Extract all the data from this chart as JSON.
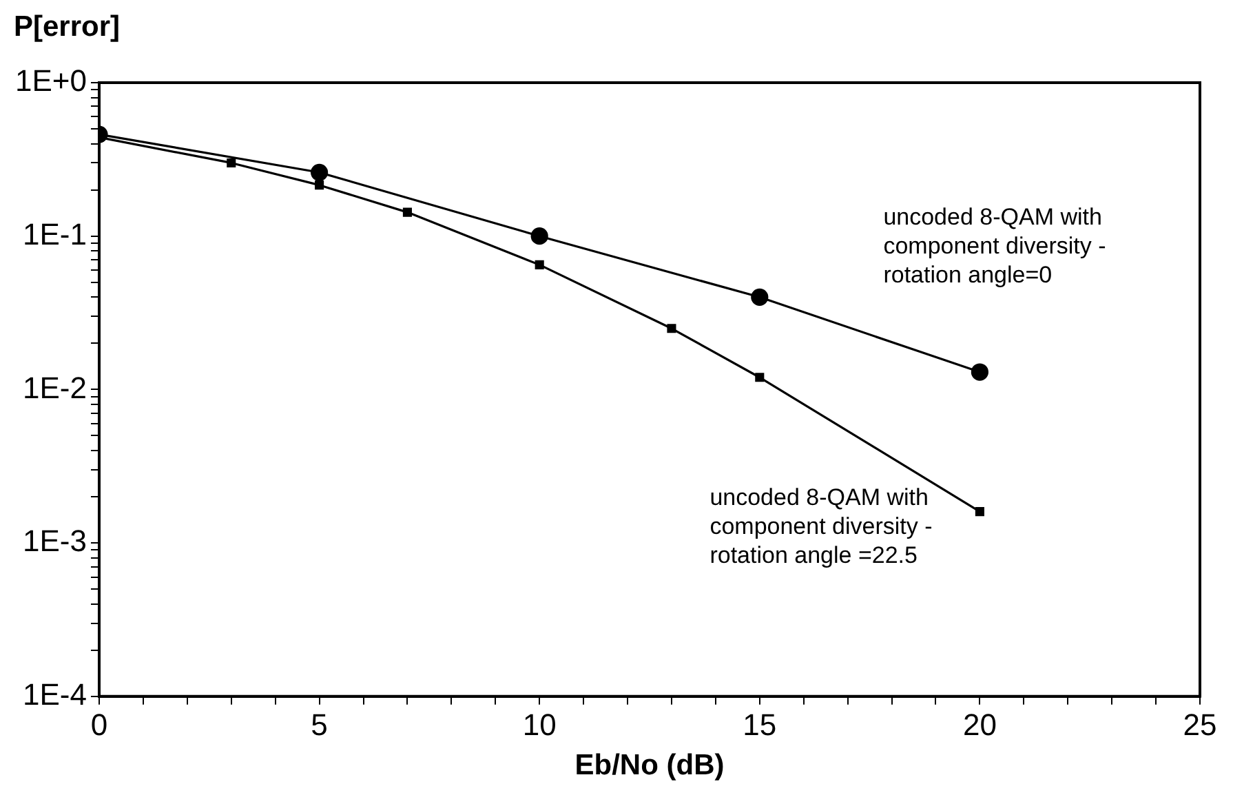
{
  "chart_data": {
    "type": "line",
    "title": "P[error]",
    "xlabel": "Eb/No (dB)",
    "log": "y",
    "grid": false,
    "legend": false,
    "line_style": "solid",
    "xlim": [
      0,
      25
    ],
    "ylim": [
      0.0001,
      1
    ],
    "xticks": [
      0,
      {
        "value": 1,
        "label": null
      },
      {
        "value": 2,
        "label": null
      },
      {
        "value": 3,
        "label": null
      },
      {
        "value": 4,
        "label": null
      },
      5,
      {
        "value": 6,
        "label": null
      },
      {
        "value": 7,
        "label": null
      },
      {
        "value": 8,
        "label": null
      },
      {
        "value": 9,
        "label": null
      },
      10,
      {
        "value": 11,
        "label": null
      },
      {
        "value": 12,
        "label": null
      },
      {
        "value": 13,
        "label": null
      },
      {
        "value": 14,
        "label": null
      },
      15,
      {
        "value": 16,
        "label": null
      },
      {
        "value": 17,
        "label": null
      },
      {
        "value": 18,
        "label": null
      },
      {
        "value": 19,
        "label": null
      },
      20,
      {
        "value": 21,
        "label": null
      },
      {
        "value": 22,
        "label": null
      },
      {
        "value": 23,
        "label": null
      },
      {
        "value": 24,
        "label": null
      },
      25
    ],
    "yticks": [
      {
        "value": 0.0001,
        "label": "1E-4"
      },
      {
        "value": 0.0002,
        "label": null
      },
      {
        "value": 0.0003,
        "label": null
      },
      {
        "value": 0.0004,
        "label": null
      },
      {
        "value": 0.0005,
        "label": null
      },
      {
        "value": 0.0006,
        "label": null
      },
      {
        "value": 0.0007,
        "label": null
      },
      {
        "value": 0.0008,
        "label": null
      },
      {
        "value": 0.0009,
        "label": null
      },
      {
        "value": 0.001,
        "label": "1E-3"
      },
      {
        "value": 0.002,
        "label": null
      },
      {
        "value": 0.003,
        "label": null
      },
      {
        "value": 0.004,
        "label": null
      },
      {
        "value": 0.005,
        "label": null
      },
      {
        "value": 0.006,
        "label": null
      },
      {
        "value": 0.007,
        "label": null
      },
      {
        "value": 0.008,
        "label": null
      },
      {
        "value": 0.009,
        "label": null
      },
      {
        "value": 0.01,
        "label": "1E-2"
      },
      {
        "value": 0.02,
        "label": null
      },
      {
        "value": 0.03,
        "label": null
      },
      {
        "value": 0.04,
        "label": null
      },
      {
        "value": 0.05,
        "label": null
      },
      {
        "value": 0.06,
        "label": null
      },
      {
        "value": 0.07,
        "label": null
      },
      {
        "value": 0.08,
        "label": null
      },
      {
        "value": 0.09,
        "label": null
      },
      {
        "value": 0.1,
        "label": "1E-1"
      },
      {
        "value": 0.2,
        "label": null
      },
      {
        "value": 0.3,
        "label": null
      },
      {
        "value": 0.4,
        "label": null
      },
      {
        "value": 0.5,
        "label": null
      },
      {
        "value": 0.6,
        "label": null
      },
      {
        "value": 0.7,
        "label": null
      },
      {
        "value": 0.8,
        "label": null
      },
      {
        "value": 0.9,
        "label": null
      },
      {
        "value": 1,
        "label": "1E+0"
      }
    ],
    "series": [
      {
        "name": "uncoded 8-QAM with component diversity - rotation angle=0",
        "color": "#000000",
        "marker": "circle",
        "x": [
          0,
          5,
          10,
          15,
          20
        ],
        "values": [
          0.46,
          0.26,
          0.1,
          0.04,
          0.013
        ]
      },
      {
        "name": "uncoded 8-QAM with component diversity - rotation angle =22.5",
        "color": "#000000",
        "marker": "square",
        "x": [
          0,
          3,
          5,
          7,
          10,
          13,
          15,
          20
        ],
        "values": [
          0.44,
          0.3,
          0.215,
          0.143,
          0.065,
          0.025,
          0.012,
          0.0016
        ]
      }
    ]
  }
}
